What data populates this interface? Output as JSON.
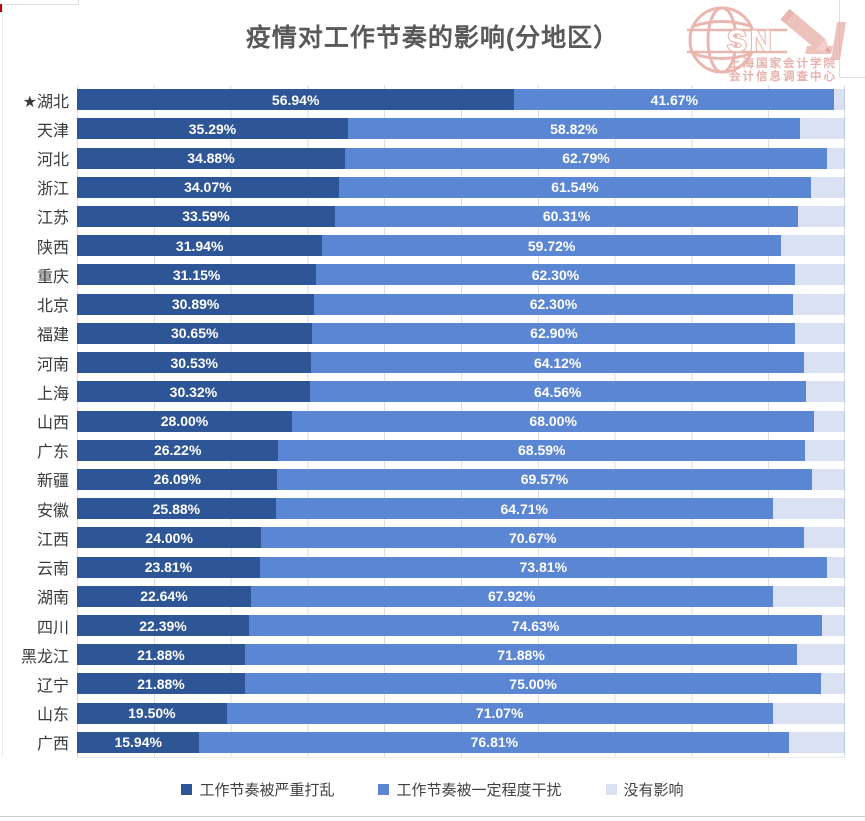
{
  "title": "疫情对工作节奏的影响(分地区）",
  "logo": {
    "brand_left": "SN",
    "brand_right": "I",
    "line1": "上海国家会计学院",
    "line2": "会计信息调查中心"
  },
  "chart_data": {
    "type": "bar",
    "orientation": "horizontal",
    "stacked": true,
    "title": "疫情对工作节奏的影响(分地区）",
    "xlim": [
      0,
      100
    ],
    "value_suffix": "%",
    "grid": "vertical gridlines every 10%",
    "legend_position": "bottom",
    "categories": [
      "★湖北",
      "天津",
      "河北",
      "浙江",
      "江苏",
      "陕西",
      "重庆",
      "北京",
      "福建",
      "河南",
      "上海",
      "山西",
      "广东",
      "新疆",
      "安徽",
      "江西",
      "云南",
      "湖南",
      "四川",
      "黑龙江",
      "辽宁",
      "山东",
      "广西"
    ],
    "series": [
      {
        "key": "severe",
        "name": "工作节奏被严重打乱",
        "color": "#2E5696",
        "show_labels": true,
        "values": [
          56.94,
          35.29,
          34.88,
          34.07,
          33.59,
          31.94,
          31.15,
          30.89,
          30.65,
          30.53,
          30.32,
          28.0,
          26.22,
          26.09,
          25.88,
          24.0,
          23.81,
          22.64,
          22.39,
          21.88,
          21.88,
          19.5,
          15.94
        ]
      },
      {
        "key": "moderate",
        "name": "工作节奏被一定程度干扰",
        "color": "#5B86D4",
        "show_labels": true,
        "values": [
          41.67,
          58.82,
          62.79,
          61.54,
          60.31,
          59.72,
          62.3,
          62.3,
          62.9,
          64.12,
          64.56,
          68.0,
          68.59,
          69.57,
          64.71,
          70.67,
          73.81,
          67.92,
          74.63,
          71.88,
          75.0,
          71.07,
          76.81
        ]
      },
      {
        "key": "none",
        "name": "没有影响",
        "color": "#D9E1F2",
        "show_labels": false,
        "values": [
          1.39,
          5.89,
          2.33,
          4.39,
          6.1,
          8.34,
          6.55,
          6.81,
          6.45,
          5.35,
          5.12,
          4.0,
          5.19,
          4.34,
          9.41,
          5.33,
          2.38,
          9.44,
          2.98,
          6.24,
          3.12,
          9.43,
          7.25
        ]
      }
    ]
  }
}
